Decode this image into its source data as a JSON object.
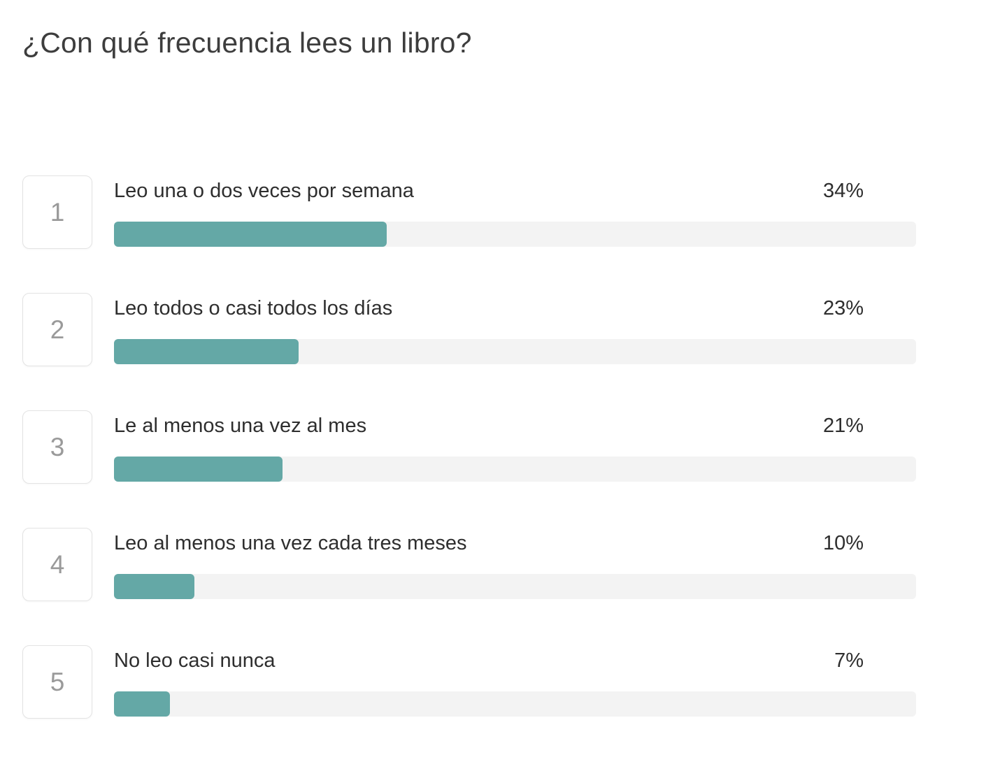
{
  "title": "¿Con qué frecuencia lees un libro?",
  "colors": {
    "bar_fill": "#64a8a6",
    "bar_track": "#f3f3f3",
    "text": "#2e2e2e",
    "rank_number": "#9a9a9a"
  },
  "results": [
    {
      "rank": "1",
      "label": "Leo una o dos veces por semana",
      "percent": "34%",
      "value": 34
    },
    {
      "rank": "2",
      "label": "Leo todos o casi todos los días",
      "percent": "23%",
      "value": 23
    },
    {
      "rank": "3",
      "label": "Le al menos una vez al mes",
      "percent": "21%",
      "value": 21
    },
    {
      "rank": "4",
      "label": "Leo al menos una vez cada tres meses",
      "percent": "10%",
      "value": 10
    },
    {
      "rank": "5",
      "label": "No leo casi nunca",
      "percent": "7%",
      "value": 7
    }
  ],
  "chart_data": {
    "type": "bar",
    "orientation": "horizontal",
    "title": "¿Con qué frecuencia lees un libro?",
    "categories": [
      "Leo una o dos veces por semana",
      "Leo todos o casi todos los días",
      "Le al menos una vez al mes",
      "Leo al menos una vez cada tres meses",
      "No leo casi nunca"
    ],
    "values": [
      34,
      23,
      21,
      10,
      7
    ],
    "value_unit": "%",
    "xlim": [
      0,
      100
    ],
    "grid": false,
    "legend": false
  }
}
